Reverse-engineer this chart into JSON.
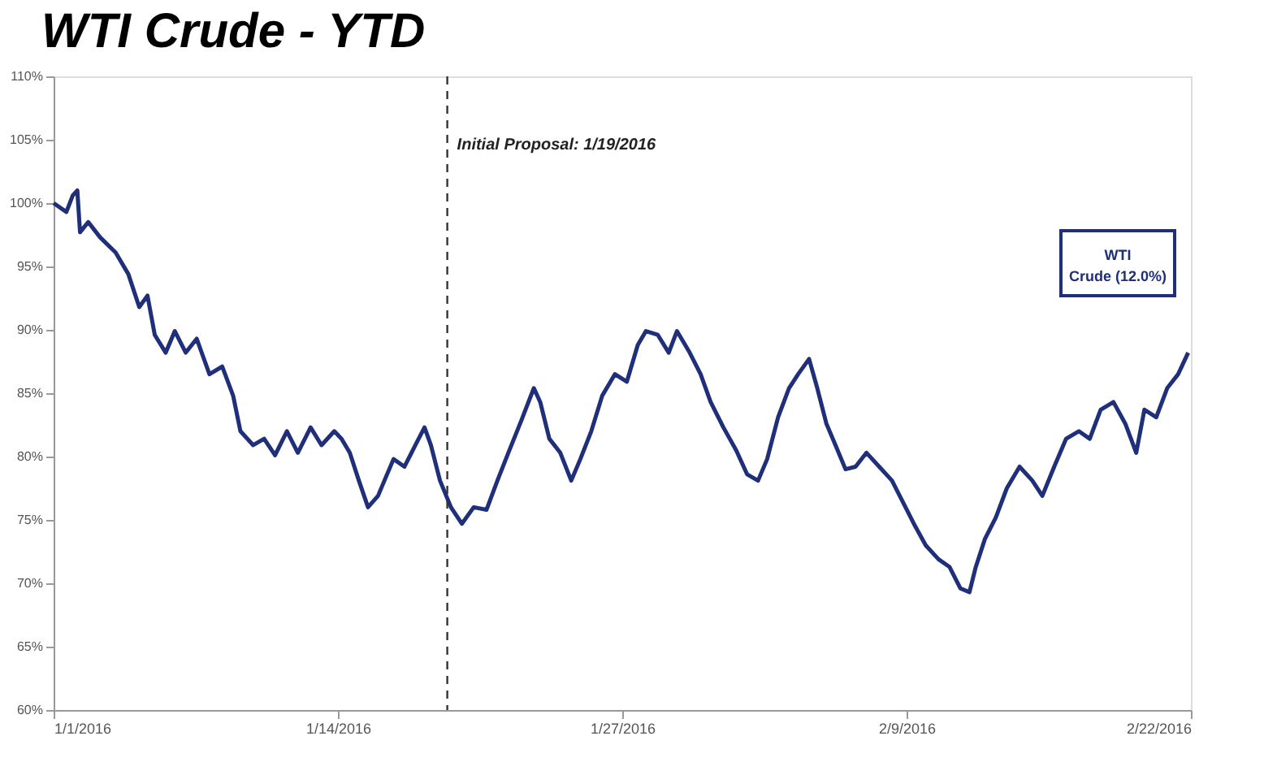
{
  "chart_data": {
    "type": "line",
    "title": "WTI Crude - YTD",
    "x": [
      "2016-01-01T00:00",
      "2016-01-01T14:00",
      "2016-01-01T21:00",
      "2016-01-02T02:00",
      "2016-01-02T05:00",
      "2016-01-02T14:00",
      "2016-01-03T03:00",
      "2016-01-03T20:00",
      "2016-01-04T10:00",
      "2016-01-04T22:00",
      "2016-01-05T07:00",
      "2016-01-05T15:00",
      "2016-01-06T03:00",
      "2016-01-06T13:00",
      "2016-01-07T01:00",
      "2016-01-07T13:00",
      "2016-01-08T03:00",
      "2016-01-08T17:00",
      "2016-01-09T05:00",
      "2016-01-09T13:00",
      "2016-01-10T03:00",
      "2016-01-10T15:00",
      "2016-01-11T03:00",
      "2016-01-11T16:00",
      "2016-01-12T04:00",
      "2016-01-12T18:00",
      "2016-01-13T06:00",
      "2016-01-13T20:00",
      "2016-01-14T04:00",
      "2016-01-14T13:00",
      "2016-01-14T23:00",
      "2016-01-15T09:00",
      "2016-01-15T20:00",
      "2016-01-16T03:00",
      "2016-01-16T13:00",
      "2016-01-17T01:00",
      "2016-01-17T13:00",
      "2016-01-17T23:00",
      "2016-01-18T06:00",
      "2016-01-18T16:00",
      "2016-01-19T04:00",
      "2016-01-19T16:00",
      "2016-01-20T05:00",
      "2016-01-20T19:00",
      "2016-01-21T07:00",
      "2016-01-21T19:00",
      "2016-01-22T09:00",
      "2016-01-22T23:00",
      "2016-01-23T06:00",
      "2016-01-23T16:00",
      "2016-01-24T04:00",
      "2016-01-24T16:00",
      "2016-01-25T02:00",
      "2016-01-25T14:00",
      "2016-01-26T02:00",
      "2016-01-26T16:00",
      "2016-01-27T05:00",
      "2016-01-27T17:00",
      "2016-01-28T02:00",
      "2016-01-28T15:00",
      "2016-01-29T03:00",
      "2016-01-29T12:00",
      "2016-01-30T02:00",
      "2016-01-30T14:00",
      "2016-01-31T01:00",
      "2016-01-31T15:00",
      "2016-02-01T05:00",
      "2016-02-01T17:00",
      "2016-02-02T05:00",
      "2016-02-02T15:00",
      "2016-02-03T03:00",
      "2016-02-03T15:00",
      "2016-02-04T01:00",
      "2016-02-04T13:00",
      "2016-02-04T22:00",
      "2016-02-05T08:00",
      "2016-02-05T18:00",
      "2016-02-06T05:00",
      "2016-02-06T16:00",
      "2016-02-07T04:00",
      "2016-02-07T18:00",
      "2016-02-08T08:00",
      "2016-02-08T20:00",
      "2016-02-09T08:00",
      "2016-02-09T21:00",
      "2016-02-10T11:00",
      "2016-02-10T23:00",
      "2016-02-11T11:00",
      "2016-02-11T21:00",
      "2016-02-12T04:00",
      "2016-02-12T14:00",
      "2016-02-13T02:00",
      "2016-02-13T14:00",
      "2016-02-14T04:00",
      "2016-02-14T18:00",
      "2016-02-15T05:00",
      "2016-02-15T18:00",
      "2016-02-16T07:00",
      "2016-02-16T21:00",
      "2016-02-17T09:00",
      "2016-02-17T21:00",
      "2016-02-18T11:00",
      "2016-02-19T00:00",
      "2016-02-19T12:00",
      "2016-02-19T21:00",
      "2016-02-20T10:00",
      "2016-02-20T22:00",
      "2016-02-21T10:00",
      "2016-02-21T21:00"
    ],
    "series": [
      {
        "name": "WTI Crude (12.0%)",
        "color": "#1f2f7a",
        "values": [
          100,
          99.3,
          100.6,
          101,
          97.7,
          98.5,
          97.3,
          96.1,
          94.4,
          91.8,
          92.7,
          89.6,
          88.2,
          89.9,
          88.2,
          89.3,
          86.5,
          87.1,
          84.8,
          82,
          80.9,
          81.4,
          80.1,
          82,
          80.3,
          82.3,
          80.9,
          82,
          81.4,
          80.3,
          78.1,
          76,
          76.9,
          78.1,
          79.8,
          79.2,
          80.9,
          82.3,
          80.9,
          78.1,
          76,
          74.7,
          76,
          75.8,
          78.1,
          80.3,
          82.8,
          85.4,
          84.3,
          81.4,
          80.3,
          78.1,
          79.8,
          82,
          84.8,
          86.5,
          85.9,
          88.8,
          89.9,
          89.6,
          88.2,
          89.9,
          88.2,
          86.5,
          84.3,
          82.3,
          80.5,
          78.6,
          78.1,
          79.8,
          83.1,
          85.4,
          86.5,
          87.7,
          85.4,
          82.6,
          80.9,
          79,
          79.2,
          80.3,
          79.2,
          78.1,
          76.4,
          74.7,
          73,
          71.9,
          71.3,
          69.6,
          69.3,
          71.3,
          73.5,
          75.2,
          77.5,
          79.2,
          78.1,
          76.9,
          79.2,
          81.4,
          82,
          81.4,
          83.7,
          84.3,
          82.6,
          80.3,
          83.7,
          83.1,
          85.4,
          86.5,
          88.2
        ]
      }
    ],
    "xlim": [
      "2016-01-01",
      "2016-02-22"
    ],
    "xticks": [
      {
        "value": "2016-01-01",
        "label": "1/1/2016"
      },
      {
        "value": "2016-01-14",
        "label": "1/14/2016"
      },
      {
        "value": "2016-01-27",
        "label": "1/27/2016"
      },
      {
        "value": "2016-02-09",
        "label": "2/9/2016"
      },
      {
        "value": "2016-02-22",
        "label": "2/22/2016"
      }
    ],
    "ylim": [
      60,
      110
    ],
    "yticks": [
      {
        "value": 60,
        "label": "60%"
      },
      {
        "value": 65,
        "label": "65%"
      },
      {
        "value": 70,
        "label": "70%"
      },
      {
        "value": 75,
        "label": "75%"
      },
      {
        "value": 80,
        "label": "80%"
      },
      {
        "value": 85,
        "label": "85%"
      },
      {
        "value": 90,
        "label": "90%"
      },
      {
        "value": 95,
        "label": "95%"
      },
      {
        "value": 100,
        "label": "100%"
      },
      {
        "value": 105,
        "label": "105%"
      },
      {
        "value": 110,
        "label": "110%"
      }
    ],
    "ref_lines": [
      {
        "axis": "x",
        "value": "2016-01-19",
        "label": "Initial Proposal: 1/19/2016",
        "color": "#333333",
        "line_style": "dashed"
      }
    ],
    "grid": false,
    "marker": "none",
    "line_style": "solid"
  }
}
